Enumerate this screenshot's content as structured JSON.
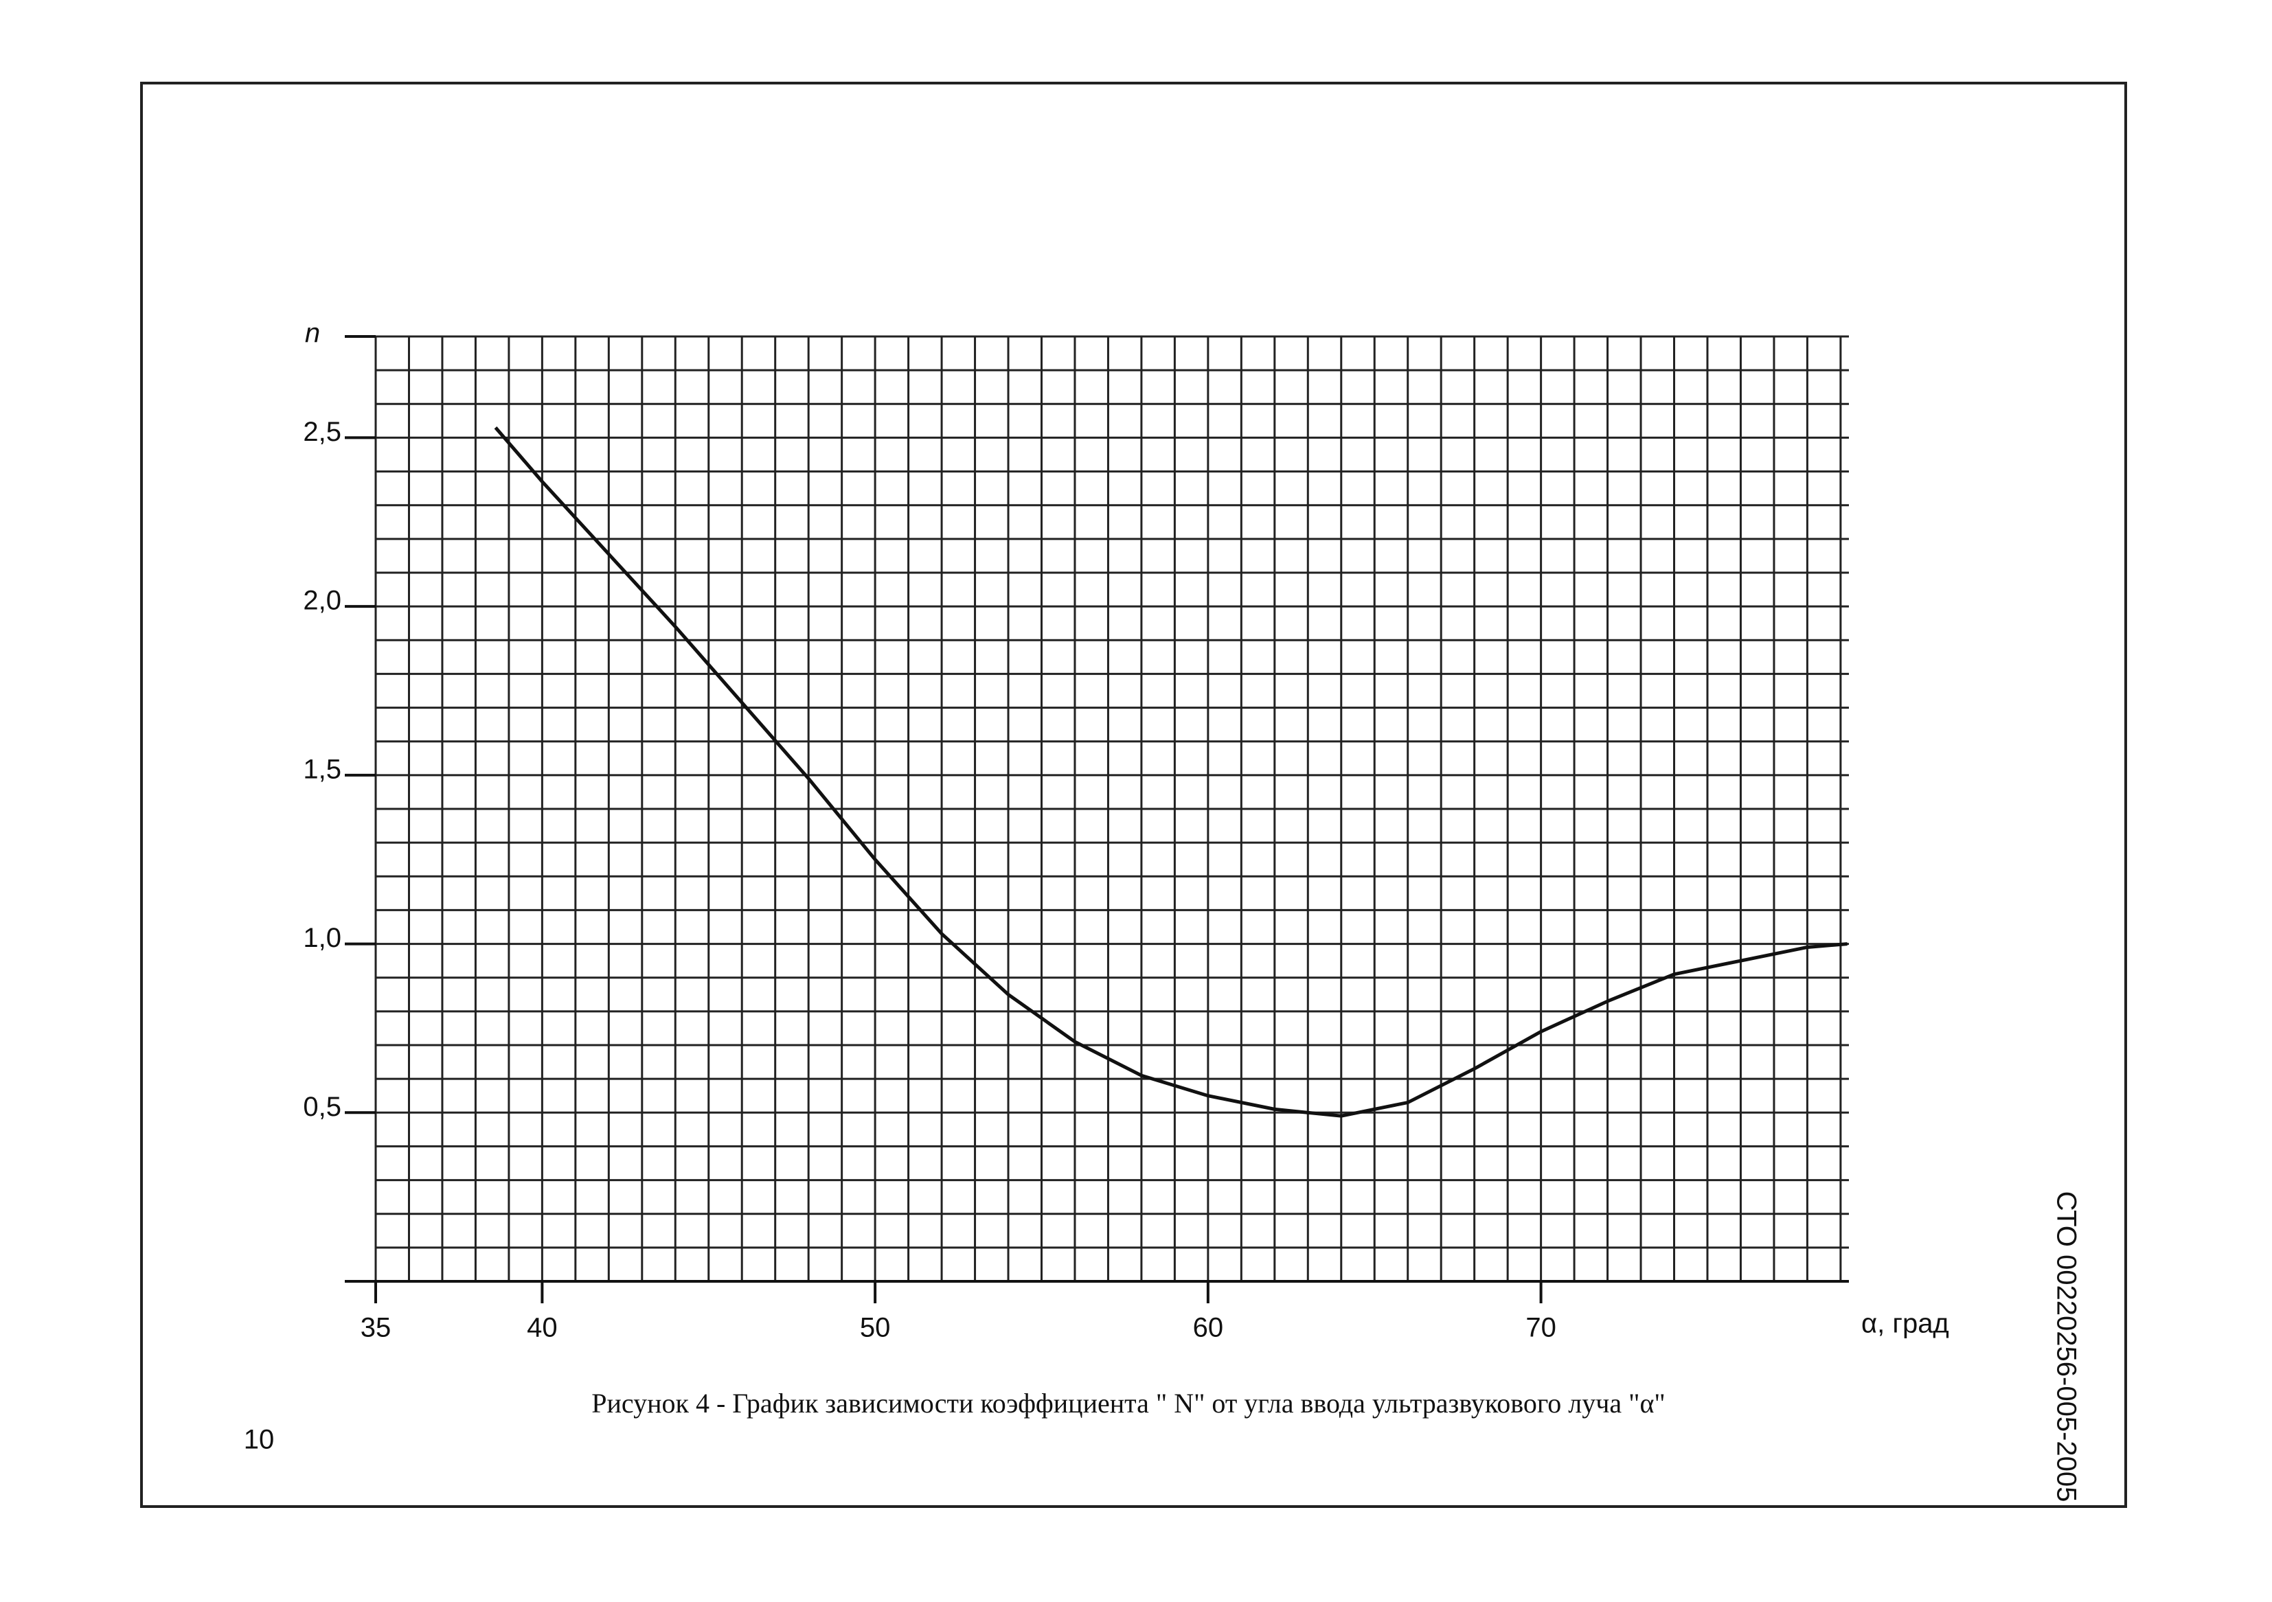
{
  "chart_data": {
    "type": "line",
    "caption": "Рисунок 4 - График зависимости коэффициента \" N\" от угла ввода ультразвукового луча \"α\"",
    "y_label": "n",
    "x_label": "α, град",
    "side_label": "СТО 00220256-005-2005",
    "page_number": "10",
    "x": [
      38.6,
      40,
      44,
      48,
      50,
      52,
      54,
      56,
      58,
      60,
      62,
      64,
      66,
      68,
      70,
      72,
      74,
      76,
      78,
      79.2
    ],
    "values": [
      2.53,
      2.37,
      1.94,
      1.49,
      1.25,
      1.03,
      0.85,
      0.71,
      0.61,
      0.55,
      0.51,
      0.49,
      0.53,
      0.63,
      0.74,
      0.83,
      0.91,
      0.95,
      0.99,
      1.0
    ],
    "color": "#111111",
    "xlim": [
      35,
      79.25
    ],
    "ylim": [
      0,
      2.8
    ],
    "xticks": [
      35,
      40,
      50,
      60,
      70
    ],
    "yticks": [
      {
        "value": 0.5,
        "label": "0,5"
      },
      {
        "value": 1.0,
        "label": "1,0"
      },
      {
        "value": 1.5,
        "label": "1,5"
      },
      {
        "value": 2.0,
        "label": "2,0"
      },
      {
        "value": 2.5,
        "label": "2,5"
      }
    ],
    "grid": true,
    "minor_grid": {
      "x": 1,
      "y": 0.1
    }
  }
}
